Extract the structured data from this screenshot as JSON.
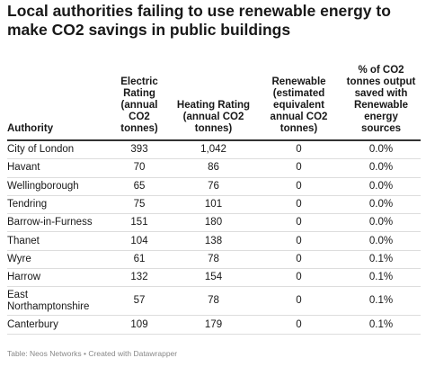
{
  "title": "Local authorities failing to use renewable energy to make CO2 savings in public buildings",
  "footer": "Table: Neos Networks • Created with Datawrapper",
  "chart_data": {
    "type": "table",
    "title": "Local authorities failing to use renewable energy to make CO2 savings in public buildings",
    "columns": [
      "Authority",
      "Electric Rating (annual CO2 tonnes)",
      "Heating Rating (annual CO2 tonnes)",
      "Renewable (estimated equivalent annual CO2 tonnes)",
      "% of CO2 tonnes output saved with Renewable energy sources"
    ],
    "rows": [
      [
        "City of London",
        "393",
        "1,042",
        "0",
        "0.0%"
      ],
      [
        "Havant",
        "70",
        "86",
        "0",
        "0.0%"
      ],
      [
        "Wellingborough",
        "65",
        "76",
        "0",
        "0.0%"
      ],
      [
        "Tendring",
        "75",
        "101",
        "0",
        "0.0%"
      ],
      [
        "Barrow-in-Furness",
        "151",
        "180",
        "0",
        "0.0%"
      ],
      [
        "Thanet",
        "104",
        "138",
        "0",
        "0.0%"
      ],
      [
        "Wyre",
        "61",
        "78",
        "0",
        "0.1%"
      ],
      [
        "Harrow",
        "132",
        "154",
        "0",
        "0.1%"
      ],
      [
        "East Northamptonshire",
        "57",
        "78",
        "0",
        "0.1%"
      ],
      [
        "Canterbury",
        "109",
        "179",
        "0",
        "0.1%"
      ]
    ]
  }
}
